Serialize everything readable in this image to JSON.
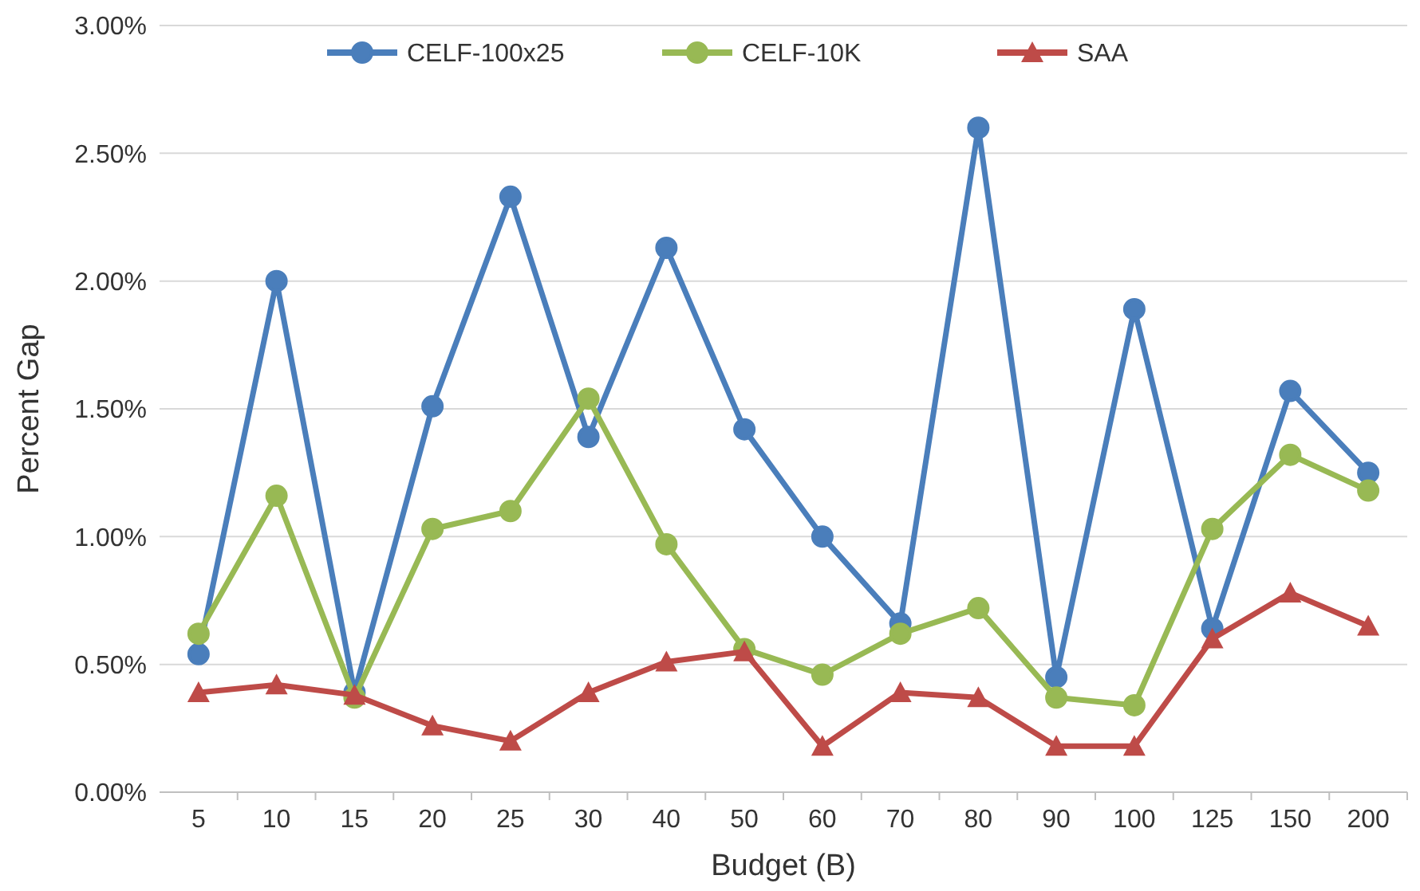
{
  "chart_data": {
    "type": "line",
    "xlabel": "Budget (B)",
    "ylabel": "Percent Gap",
    "categories": [
      "5",
      "10",
      "15",
      "20",
      "25",
      "30",
      "40",
      "50",
      "60",
      "70",
      "80",
      "90",
      "100",
      "125",
      "150",
      "200"
    ],
    "ylim": [
      0,
      3
    ],
    "yticks": [
      {
        "value": 0,
        "label": "0.00%"
      },
      {
        "value": 0.5,
        "label": "0.50%"
      },
      {
        "value": 1,
        "label": "1.00%"
      },
      {
        "value": 1.5,
        "label": "1.50%"
      },
      {
        "value": 2,
        "label": "2.00%"
      },
      {
        "value": 2.5,
        "label": "2.50%"
      },
      {
        "value": 3,
        "label": "3.00%"
      }
    ],
    "grid": "y",
    "legend": "top",
    "line_style": "solid",
    "series": [
      {
        "name": "CELF-100x25",
        "color": "#4a7ebb",
        "marker": "circle",
        "values": [
          0.54,
          2.0,
          0.39,
          1.51,
          2.33,
          1.39,
          2.13,
          1.42,
          1.0,
          0.66,
          2.6,
          0.45,
          1.89,
          0.64,
          1.57,
          1.25
        ]
      },
      {
        "name": "CELF-10K",
        "color": "#98b954",
        "marker": "circle",
        "values": [
          0.62,
          1.16,
          0.37,
          1.03,
          1.1,
          1.54,
          0.97,
          0.56,
          0.46,
          0.62,
          0.72,
          0.37,
          0.34,
          1.03,
          1.32,
          1.18
        ]
      },
      {
        "name": "SAA",
        "color": "#be4b48",
        "marker": "triangle",
        "values": [
          0.39,
          0.42,
          0.38,
          0.26,
          0.2,
          0.39,
          0.51,
          0.55,
          0.18,
          0.39,
          0.37,
          0.18,
          0.18,
          0.6,
          0.78,
          0.65
        ]
      }
    ]
  }
}
